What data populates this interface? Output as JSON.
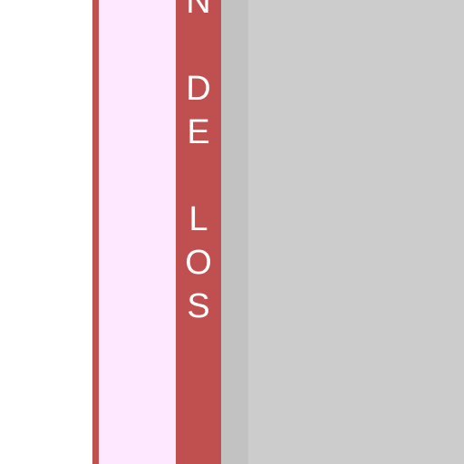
{
  "vertical_label": {
    "chars": [
      "N",
      "",
      "D",
      "E",
      "",
      "L",
      "O",
      "S"
    ]
  },
  "colors": {
    "accent": "#c0504f",
    "pink_panel": "#fde8ff",
    "content_bg": "#cccccc",
    "shadow": "#c2c2c2"
  }
}
